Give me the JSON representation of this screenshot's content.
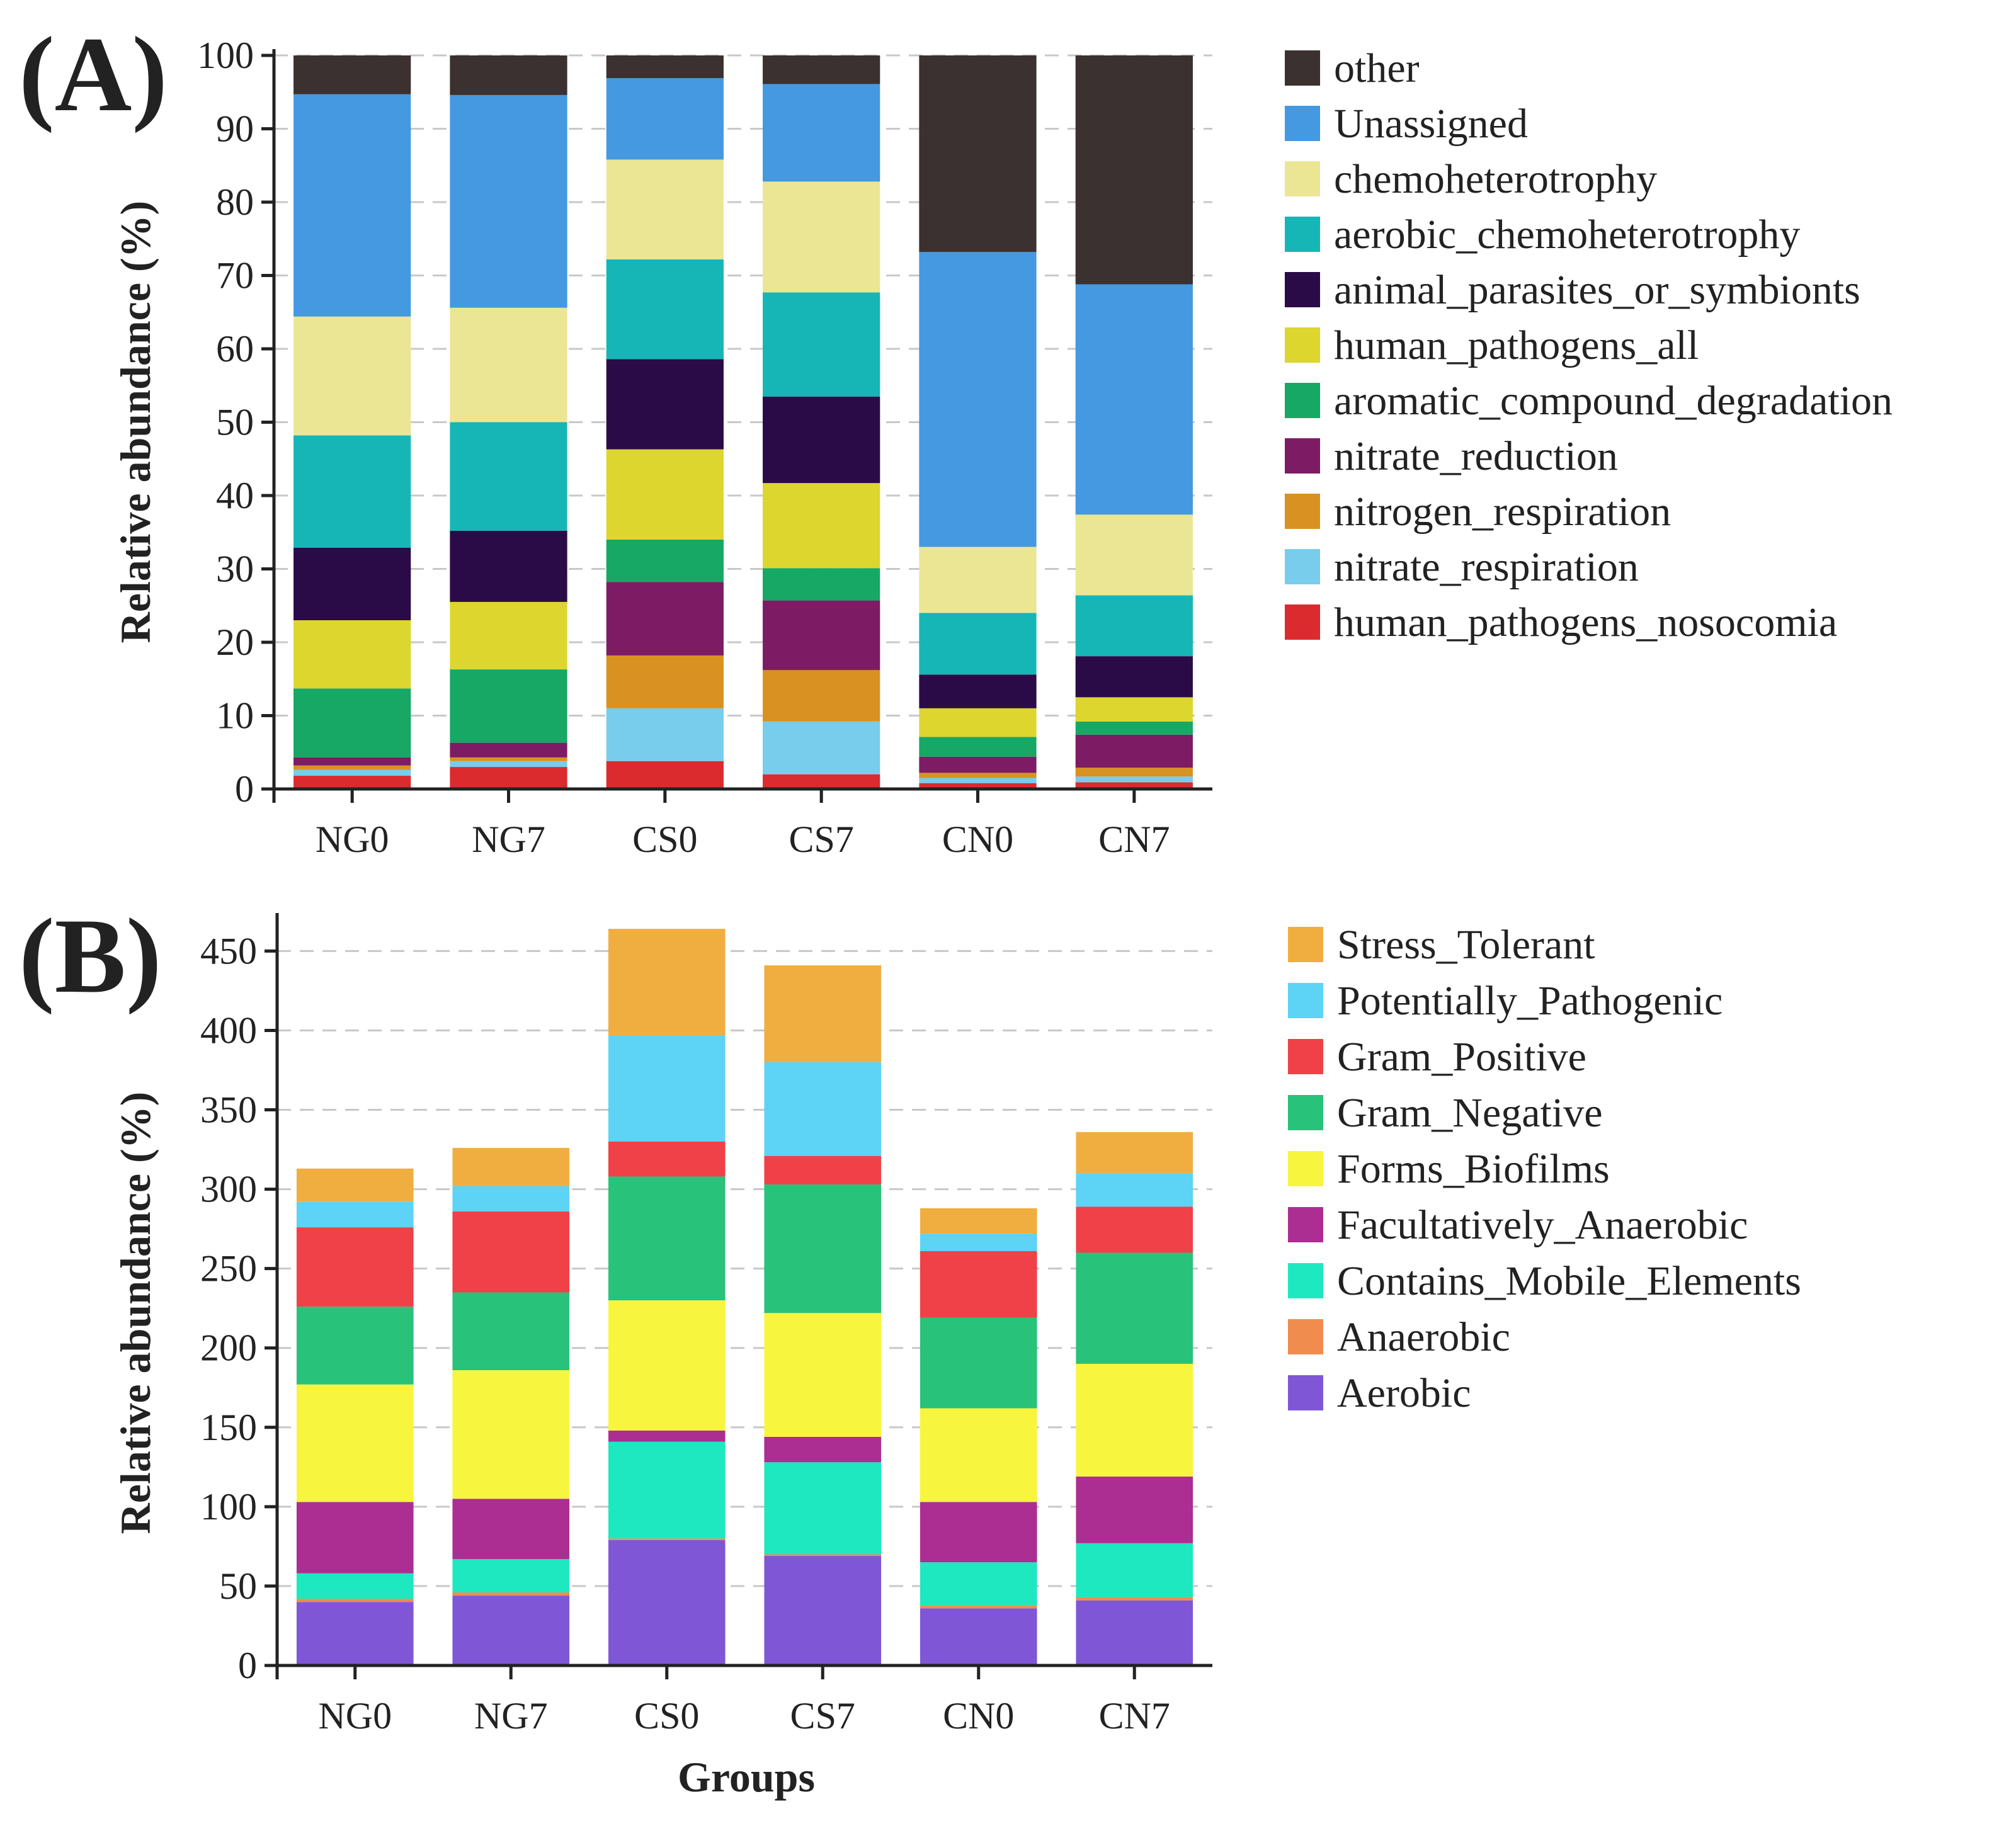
{
  "chart_data": [
    {
      "panel_label": "(A)",
      "type": "bar",
      "stacked": true,
      "title": "",
      "xlabel": "",
      "ylabel": "Relative abundance (%)",
      "ylim": [
        0,
        100
      ],
      "yticks": [
        "0",
        "10",
        "20",
        "30",
        "40",
        "50",
        "60",
        "70",
        "80",
        "90",
        "100"
      ],
      "grid": true,
      "legend_position": "right",
      "categories": [
        "NG0",
        "NG7",
        "CS0",
        "CS7",
        "CN0",
        "CN7"
      ],
      "series": [
        {
          "name": "human_pathogens_nosocomia",
          "color": "#db2b2f",
          "values": [
            1.8,
            3.0,
            3.8,
            2.0,
            0.8,
            0.9
          ]
        },
        {
          "name": "nitrate_respiration",
          "color": "#77cdeb",
          "values": [
            0.8,
            0.8,
            7.2,
            7.2,
            0.7,
            0.8
          ]
        },
        {
          "name": "nitrogen_respiration",
          "color": "#d99221",
          "values": [
            0.6,
            0.5,
            7.2,
            7.0,
            0.7,
            1.2
          ]
        },
        {
          "name": "nitrate_reduction",
          "color": "#7d1c64",
          "values": [
            1.1,
            2.0,
            10.0,
            9.5,
            2.2,
            4.5
          ]
        },
        {
          "name": "aromatic_compound_degradation",
          "color": "#16a864",
          "values": [
            9.4,
            10.0,
            5.8,
            4.4,
            2.7,
            1.8
          ]
        },
        {
          "name": "human_pathogens_all",
          "color": "#ddd62f",
          "values": [
            9.3,
            9.2,
            12.3,
            11.6,
            3.9,
            3.3
          ]
        },
        {
          "name": "animal_parasites_or_symbionts",
          "color": "#2b0b47",
          "values": [
            9.9,
            9.7,
            12.3,
            11.8,
            4.6,
            5.6
          ]
        },
        {
          "name": "aerobic_chemoheterotrophy",
          "color": "#16b6b6",
          "values": [
            15.3,
            14.8,
            13.6,
            14.2,
            8.4,
            8.3
          ]
        },
        {
          "name": "chemoheterotrophy",
          "color": "#ebe694",
          "values": [
            16.2,
            15.6,
            13.6,
            15.1,
            9.0,
            11.0
          ]
        },
        {
          "name": "Unassigned",
          "color": "#4499e0",
          "values": [
            30.3,
            29.0,
            11.1,
            13.3,
            40.2,
            31.4
          ]
        },
        {
          "name": "other",
          "color": "#3b3130",
          "values": [
            5.3,
            5.4,
            3.1,
            3.9,
            26.8,
            31.2
          ]
        }
      ],
      "legend": [
        "other",
        "Unassigned",
        "chemoheterotrophy",
        "aerobic_chemoheterotrophy",
        "animal_parasites_or_symbionts",
        "human_pathogens_all",
        "aromatic_compound_degradation",
        "nitrate_reduction",
        "nitrogen_respiration",
        "nitrate_respiration",
        "human_pathogens_nosocomia"
      ]
    },
    {
      "panel_label": "(B)",
      "type": "bar",
      "stacked": true,
      "title": "",
      "xlabel": "Groups",
      "ylabel": "Relative abundance (%)",
      "ylim": [
        0,
        470
      ],
      "yticks": [
        "0",
        "50",
        "100",
        "150",
        "200",
        "250",
        "300",
        "350",
        "400",
        "450"
      ],
      "grid": true,
      "legend_position": "right",
      "categories": [
        "NG0",
        "NG7",
        "CS0",
        "CS7",
        "CN0",
        "CN7"
      ],
      "series": [
        {
          "name": "Aerobic",
          "color": "#7f57d6",
          "values": [
            40,
            44,
            79,
            69,
            36,
            41
          ]
        },
        {
          "name": "Anaerobic",
          "color": "#f08c4e",
          "values": [
            2,
            2,
            1,
            1,
            2,
            2
          ]
        },
        {
          "name": "Contains_Mobile_Elements",
          "color": "#1ee8c0",
          "values": [
            16,
            21,
            61,
            58,
            27,
            34
          ]
        },
        {
          "name": "Facultatively_Anaerobic",
          "color": "#ac2e93",
          "values": [
            45,
            38,
            7,
            16,
            38,
            42
          ]
        },
        {
          "name": "Forms_Biofilms",
          "color": "#f8f53e",
          "values": [
            74,
            81,
            82,
            78,
            59,
            71
          ]
        },
        {
          "name": "Gram_Negative",
          "color": "#28c27a",
          "values": [
            49,
            49,
            78,
            81,
            57,
            70
          ]
        },
        {
          "name": "Gram_Positive",
          "color": "#ef4147",
          "values": [
            50,
            51,
            22,
            18,
            42,
            29
          ]
        },
        {
          "name": "Potentially_Pathogenic",
          "color": "#5dd3f5",
          "values": [
            16,
            16,
            67,
            59,
            11,
            21
          ]
        },
        {
          "name": "Stress_Tolerant",
          "color": "#f0ae40",
          "values": [
            21,
            24,
            67,
            61,
            16,
            26
          ]
        }
      ],
      "legend": [
        "Stress_Tolerant",
        "Potentially_Pathogenic",
        "Gram_Positive",
        "Gram_Negative",
        "Forms_Biofilms",
        "Facultatively_Anaerobic",
        "Contains_Mobile_Elements",
        "Anaerobic",
        "Aerobic"
      ]
    }
  ]
}
